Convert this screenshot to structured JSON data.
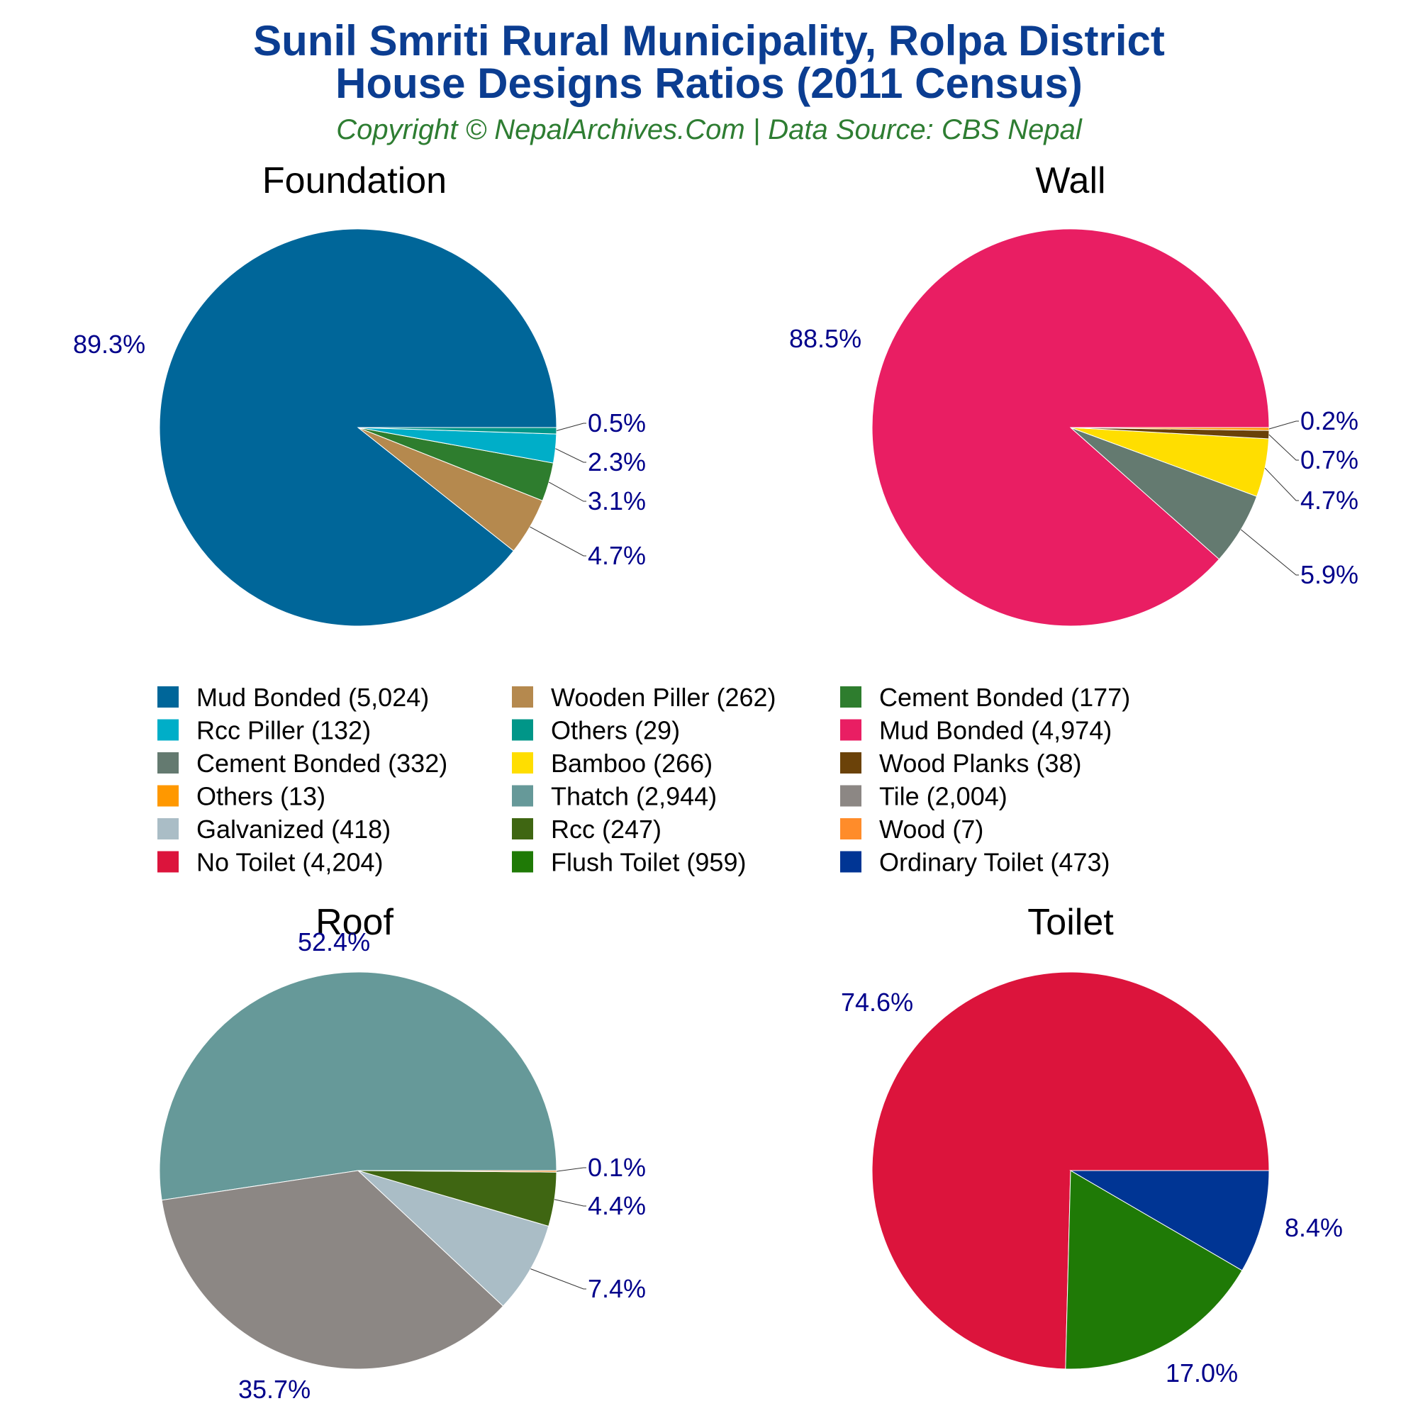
{
  "title_line1": "Sunil Smriti Rural Municipality, Rolpa District",
  "title_line2": "House Designs Ratios (2011 Census)",
  "subtitle": "Copyright © NepalArchives.Com | Data Source: CBS Nepal",
  "chart_data": [
    {
      "type": "pie",
      "title": "Foundation",
      "slices": [
        {
          "label": "Mud Bonded",
          "value": 5024,
          "pct_label": "89.3%",
          "color": "#006699"
        },
        {
          "label": "Wooden Piller",
          "value": 262,
          "pct_label": "4.7%",
          "color": "#b5894e"
        },
        {
          "label": "Cement Bonded",
          "value": 177,
          "pct_label": "3.1%",
          "color": "#2e7d2e"
        },
        {
          "label": "Rcc Piller",
          "value": 132,
          "pct_label": "2.3%",
          "color": "#00aec8"
        },
        {
          "label": "Others",
          "value": 29,
          "pct_label": "0.5%",
          "color": "#009688"
        }
      ]
    },
    {
      "type": "pie",
      "title": "Wall",
      "slices": [
        {
          "label": "Mud Bonded",
          "value": 4974,
          "pct_label": "88.5%",
          "color": "#e91e63"
        },
        {
          "label": "Cement Bonded",
          "value": 332,
          "pct_label": "5.9%",
          "color": "#647a70"
        },
        {
          "label": "Bamboo",
          "value": 266,
          "pct_label": "4.7%",
          "color": "#ffde00"
        },
        {
          "label": "Wood Planks",
          "value": 38,
          "pct_label": "0.7%",
          "color": "#6b4209"
        },
        {
          "label": "Others",
          "value": 13,
          "pct_label": "0.2%",
          "color": "#ff9800"
        }
      ]
    },
    {
      "type": "pie",
      "title": "Roof",
      "slices": [
        {
          "label": "Thatch",
          "value": 2944,
          "pct_label": "52.4%",
          "color": "#669999"
        },
        {
          "label": "Tile",
          "value": 2004,
          "pct_label": "35.7%",
          "color": "#8c8784"
        },
        {
          "label": "Galvanized",
          "value": 418,
          "pct_label": "7.4%",
          "color": "#aabdc6"
        },
        {
          "label": "Rcc",
          "value": 247,
          "pct_label": "4.4%",
          "color": "#3f6612"
        },
        {
          "label": "Wood",
          "value": 7,
          "pct_label": "0.1%",
          "color": "#ff8c2a"
        }
      ]
    },
    {
      "type": "pie",
      "title": "Toilet",
      "slices": [
        {
          "label": "No Toilet",
          "value": 4204,
          "pct_label": "74.6%",
          "color": "#dc143c"
        },
        {
          "label": "Flush Toilet",
          "value": 959,
          "pct_label": "17.0%",
          "color": "#1f7a06"
        },
        {
          "label": "Ordinary Toilet",
          "value": 473,
          "pct_label": "8.4%",
          "color": "#003594"
        }
      ]
    }
  ],
  "legend": [
    {
      "label": "Mud Bonded (5,024)",
      "color": "#006699"
    },
    {
      "label": "Wooden Piller (262)",
      "color": "#b5894e"
    },
    {
      "label": "Cement Bonded (177)",
      "color": "#2e7d2e"
    },
    {
      "label": "Rcc Piller (132)",
      "color": "#00aec8"
    },
    {
      "label": "Others (29)",
      "color": "#009688"
    },
    {
      "label": "Mud Bonded (4,974)",
      "color": "#e91e63"
    },
    {
      "label": "Cement Bonded (332)",
      "color": "#647a70"
    },
    {
      "label": "Bamboo (266)",
      "color": "#ffde00"
    },
    {
      "label": "Wood Planks (38)",
      "color": "#6b4209"
    },
    {
      "label": "Others (13)",
      "color": "#ff9800"
    },
    {
      "label": "Thatch (2,944)",
      "color": "#669999"
    },
    {
      "label": "Tile (2,004)",
      "color": "#8c8784"
    },
    {
      "label": "Galvanized (418)",
      "color": "#aabdc6"
    },
    {
      "label": "Rcc (247)",
      "color": "#3f6612"
    },
    {
      "label": "Wood (7)",
      "color": "#ff8c2a"
    },
    {
      "label": "No Toilet (4,204)",
      "color": "#dc143c"
    },
    {
      "label": "Flush Toilet (959)",
      "color": "#1f7a06"
    },
    {
      "label": "Ordinary Toilet (473)",
      "color": "#003594"
    }
  ]
}
